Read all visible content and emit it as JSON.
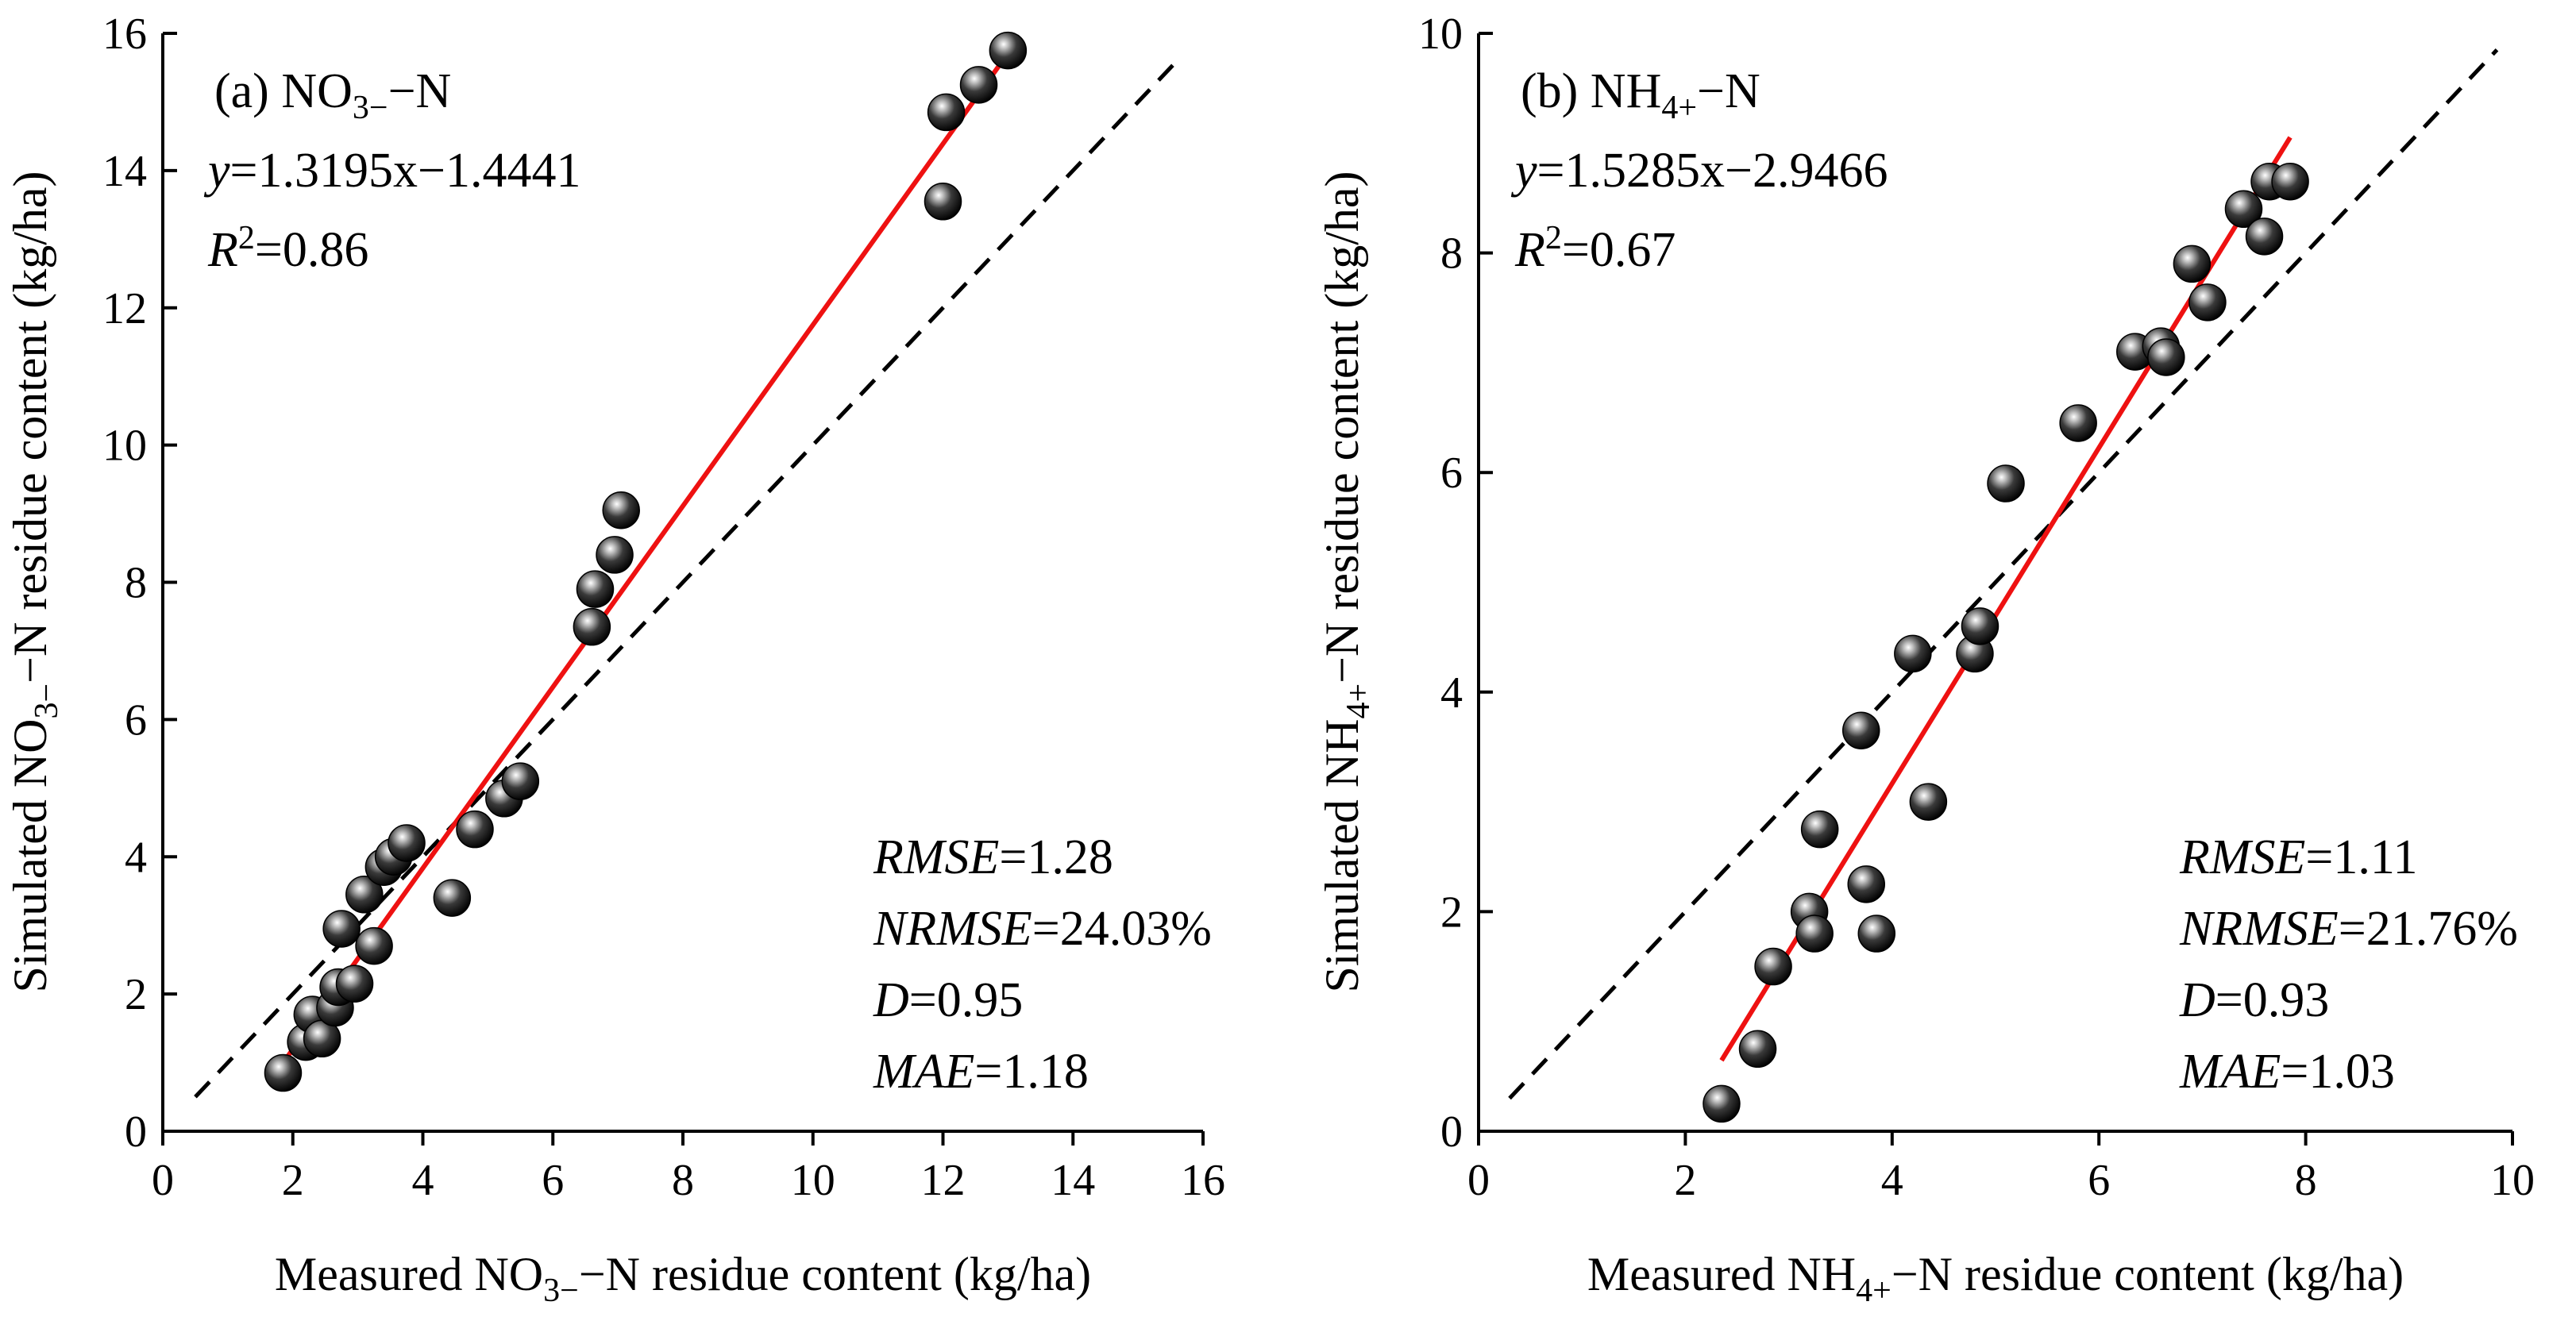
{
  "chart_data": [
    {
      "type": "scatter",
      "panel": "(a)",
      "title_main": "NO",
      "title_sub": "3−",
      "title_tail": "−N",
      "equation": {
        "y": "y",
        "rest": "=1.3195x−1.4441"
      },
      "r2": {
        "r": "R",
        "sup": "2",
        "rest": "=0.86"
      },
      "xlabel": {
        "pre": "Measured NO",
        "sub": "3−",
        "post": "−N residue content (kg/ha)"
      },
      "ylabel": {
        "pre": "Simulated NO",
        "sub": "3−",
        "post": "−N residue content (kg/ha)"
      },
      "xlim": [
        0,
        16
      ],
      "ylim": [
        0,
        16
      ],
      "xticks": [
        "0",
        "2",
        "4",
        "6",
        "8",
        "10",
        "12",
        "14",
        "16"
      ],
      "yticks": [
        "0",
        "2",
        "4",
        "6",
        "8",
        "10",
        "12",
        "14",
        "16"
      ],
      "fit": {
        "slope": 1.3195,
        "intercept": -1.4441,
        "x_range": [
          1.8,
          13.0
        ],
        "color": "#ee1111"
      },
      "one_to_one": {
        "x_range": [
          0.5,
          15.6
        ]
      },
      "stats": [
        {
          "name": "RMSE",
          "value": "=1.28"
        },
        {
          "name": "NRMSE",
          "value": "=24.03%"
        },
        {
          "name": "D",
          "value": "=0.95"
        },
        {
          "name": "MAE",
          "value": "=1.18"
        }
      ],
      "points": [
        {
          "x": 1.85,
          "y": 0.85
        },
        {
          "x": 2.2,
          "y": 1.3
        },
        {
          "x": 2.3,
          "y": 1.7
        },
        {
          "x": 2.45,
          "y": 1.35
        },
        {
          "x": 2.65,
          "y": 1.8
        },
        {
          "x": 2.7,
          "y": 2.1
        },
        {
          "x": 2.75,
          "y": 2.95
        },
        {
          "x": 2.95,
          "y": 2.15
        },
        {
          "x": 3.1,
          "y": 3.45
        },
        {
          "x": 3.25,
          "y": 2.7
        },
        {
          "x": 3.4,
          "y": 3.85
        },
        {
          "x": 3.55,
          "y": 4.0
        },
        {
          "x": 3.75,
          "y": 4.2
        },
        {
          "x": 4.45,
          "y": 3.4
        },
        {
          "x": 4.8,
          "y": 4.4
        },
        {
          "x": 5.25,
          "y": 4.85
        },
        {
          "x": 5.5,
          "y": 5.1
        },
        {
          "x": 6.6,
          "y": 7.35
        },
        {
          "x": 6.65,
          "y": 7.9
        },
        {
          "x": 6.95,
          "y": 8.4
        },
        {
          "x": 7.05,
          "y": 9.05
        },
        {
          "x": 12.0,
          "y": 13.55
        },
        {
          "x": 12.05,
          "y": 14.85
        },
        {
          "x": 12.55,
          "y": 15.25
        },
        {
          "x": 13.0,
          "y": 15.75
        }
      ]
    },
    {
      "type": "scatter",
      "panel": "(b)",
      "title_main": "NH",
      "title_sub": "4+",
      "title_tail": "−N",
      "equation": {
        "y": "y",
        "rest": "=1.5285x−2.9466"
      },
      "r2": {
        "r": "R",
        "sup": "2",
        "rest": "=0.67"
      },
      "xlabel": {
        "pre": "Measured NH",
        "sub": "4+",
        "post": "−N residue content (kg/ha)"
      },
      "ylabel": {
        "pre": "Simulated NH",
        "sub": "4+",
        "post": "−N residue content (kg/ha)"
      },
      "xlim": [
        0,
        10
      ],
      "ylim": [
        0,
        10
      ],
      "xticks": [
        "0",
        "2",
        "4",
        "6",
        "8",
        "10"
      ],
      "yticks": [
        "0",
        "2",
        "4",
        "6",
        "8",
        "10"
      ],
      "fit": {
        "slope": 1.5285,
        "intercept": -2.9466,
        "x_range": [
          2.35,
          7.85
        ],
        "color": "#ee1111"
      },
      "one_to_one": {
        "x_range": [
          0.3,
          9.85
        ]
      },
      "stats": [
        {
          "name": "RMSE",
          "value": "=1.11"
        },
        {
          "name": "NRMSE",
          "value": "=21.76%"
        },
        {
          "name": "D",
          "value": "=0.93"
        },
        {
          "name": "MAE",
          "value": "=1.03"
        }
      ],
      "points": [
        {
          "x": 2.35,
          "y": 0.25
        },
        {
          "x": 2.7,
          "y": 0.75
        },
        {
          "x": 2.85,
          "y": 1.5
        },
        {
          "x": 3.2,
          "y": 2.0
        },
        {
          "x": 3.25,
          "y": 1.8
        },
        {
          "x": 3.3,
          "y": 2.75
        },
        {
          "x": 3.7,
          "y": 3.65
        },
        {
          "x": 3.75,
          "y": 2.25
        },
        {
          "x": 3.85,
          "y": 1.8
        },
        {
          "x": 4.2,
          "y": 4.35
        },
        {
          "x": 4.35,
          "y": 3.0
        },
        {
          "x": 4.8,
          "y": 4.35
        },
        {
          "x": 4.85,
          "y": 4.6
        },
        {
          "x": 5.1,
          "y": 5.9
        },
        {
          "x": 5.8,
          "y": 6.45
        },
        {
          "x": 6.35,
          "y": 7.1
        },
        {
          "x": 6.6,
          "y": 7.15
        },
        {
          "x": 6.65,
          "y": 7.05
        },
        {
          "x": 6.9,
          "y": 7.9
        },
        {
          "x": 7.05,
          "y": 7.55
        },
        {
          "x": 7.4,
          "y": 8.4
        },
        {
          "x": 7.6,
          "y": 8.15
        },
        {
          "x": 7.65,
          "y": 8.65
        },
        {
          "x": 7.85,
          "y": 8.65
        }
      ]
    }
  ]
}
